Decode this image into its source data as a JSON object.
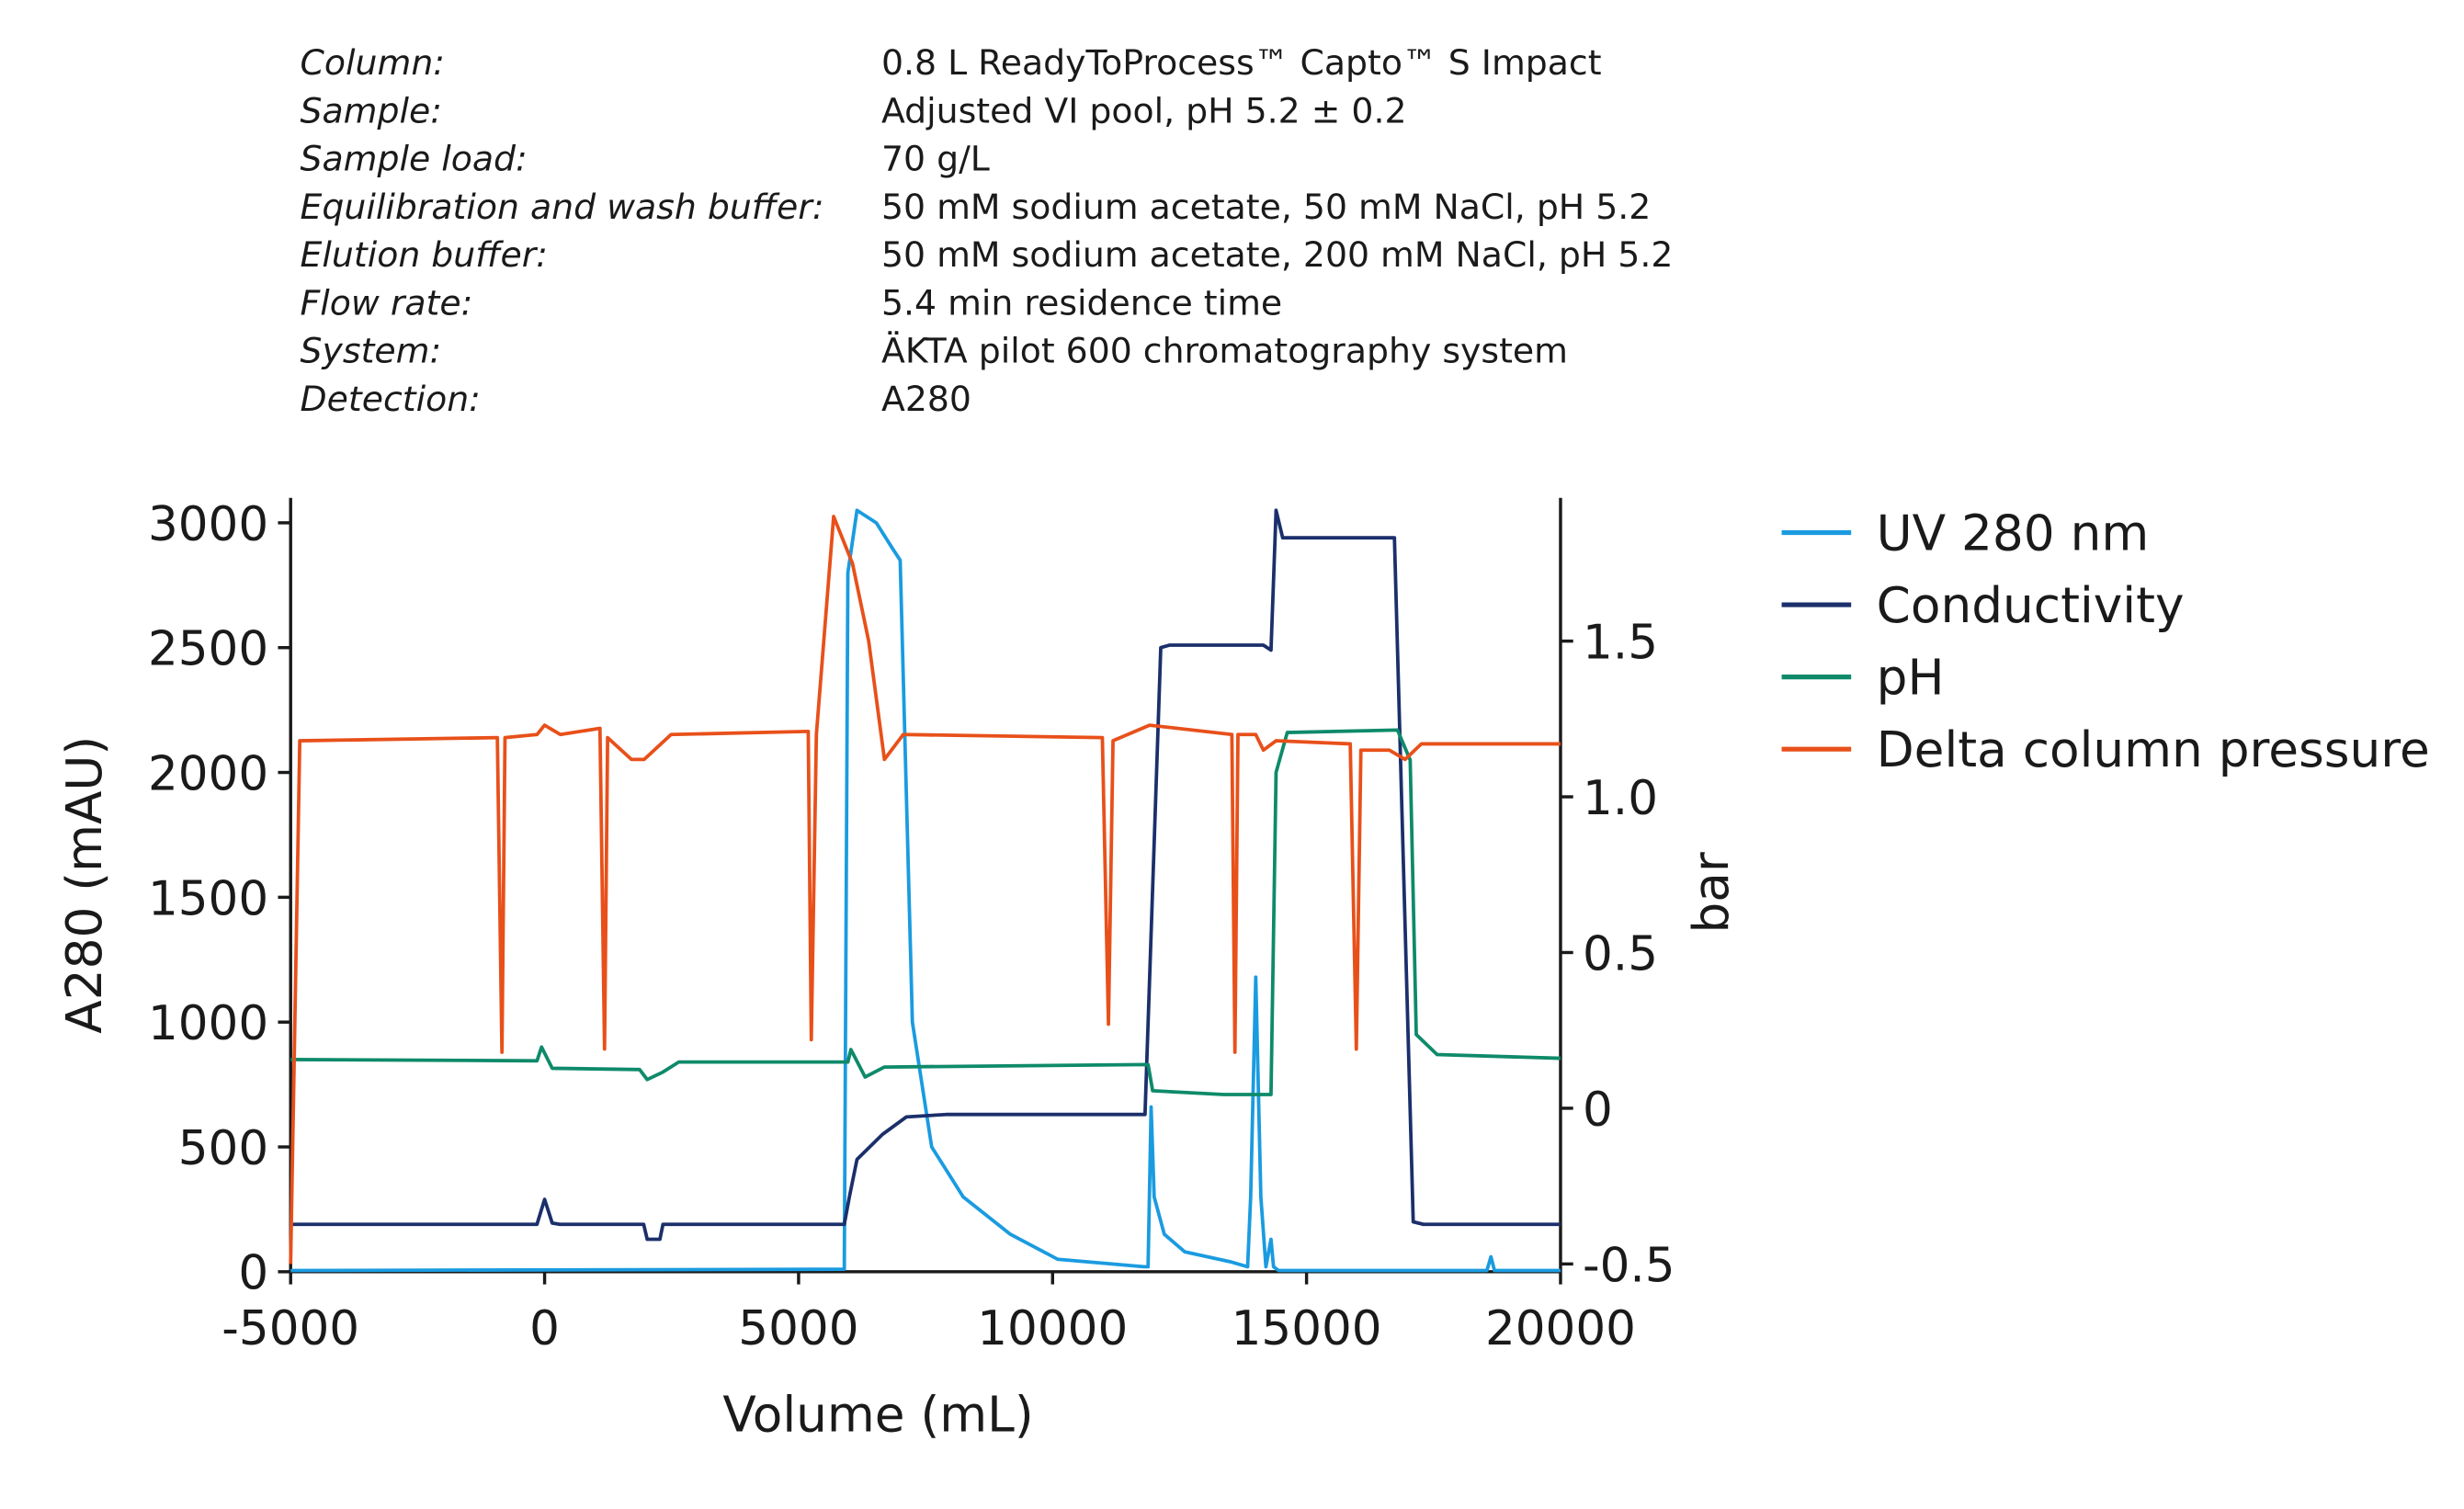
{
  "conditions": [
    {
      "label": "Column:",
      "value": "0.8 L ReadyToProcess™ Capto™ S Impact"
    },
    {
      "label": "Sample:",
      "value": "Adjusted VI pool, pH 5.2 ± 0.2"
    },
    {
      "label": "Sample load:",
      "value": "70 g/L"
    },
    {
      "label": "Equilibration and wash buffer:",
      "value": "50 mM sodium acetate, 50 mM NaCl, pH 5.2"
    },
    {
      "label": "Elution buffer:",
      "value": "50 mM sodium acetate, 200 mM NaCl, pH 5.2"
    },
    {
      "label": "Flow rate:",
      "value": "5.4 min residence time"
    },
    {
      "label": "System:",
      "value": "ÄKTA pilot 600 chromatography system"
    },
    {
      "label": "Detection:",
      "value": "A280"
    }
  ],
  "chart_data": {
    "type": "line",
    "x_label": "Volume (mL)",
    "y_label": "A280 (mAU)",
    "y2_label": "bar",
    "xlim": [
      -5000,
      20000
    ],
    "xticks": [
      -5000,
      0,
      5000,
      10000,
      15000,
      20000
    ],
    "ylim": [
      0,
      3100
    ],
    "yticks": [
      0,
      500,
      1000,
      1500,
      2000,
      2500,
      3000
    ],
    "y2lim": [
      -0.525,
      1.96
    ],
    "y2ticks": [
      -0.5,
      {
        "value": 0,
        "label": "0"
      },
      0.5,
      {
        "value": 1.0,
        "label": "1.0"
      },
      1.5
    ],
    "legend": "right",
    "series": [
      {
        "name": "UV 280 nm",
        "color": "#1a9be0",
        "x": [
          -5000,
          5900,
          5970,
          6150,
          6530,
          6840,
          7000,
          7240,
          7620,
          8240,
          9170,
          10100,
          11800,
          11880,
          11940,
          12000,
          12200,
          12600,
          13500,
          13840,
          13900,
          14000,
          14100,
          14200,
          14300,
          14350,
          14450,
          18550,
          18630,
          18700,
          20000
        ],
        "values": [
          5,
          10,
          2800,
          3050,
          3000,
          2900,
          2850,
          1000,
          500,
          300,
          150,
          50,
          20,
          20,
          660,
          300,
          150,
          80,
          40,
          20,
          300,
          1180,
          300,
          20,
          130,
          20,
          5,
          5,
          60,
          5,
          5
        ]
      },
      {
        "name": "Conductivity",
        "color": "#1b2f6b",
        "x": [
          -5000,
          -150,
          0,
          150,
          300,
          1950,
          2020,
          2270,
          2330,
          5900,
          6000,
          6150,
          6650,
          7120,
          7900,
          11820,
          12130,
          12300,
          14150,
          14300,
          14400,
          14530,
          16730,
          17100,
          17300,
          20000
        ],
        "values": [
          190,
          190,
          290,
          195,
          190,
          190,
          130,
          130,
          190,
          190,
          300,
          450,
          550,
          620,
          630,
          630,
          2500,
          2510,
          2510,
          2490,
          3050,
          2940,
          2940,
          200,
          190,
          190
        ]
      },
      {
        "name": "pH",
        "color": "#0e8a6a",
        "x": [
          -5000,
          -150,
          -60,
          150,
          1870,
          2020,
          2330,
          2640,
          5970,
          6030,
          6310,
          6690,
          11880,
          11970,
          13370,
          14300,
          14400,
          14620,
          16790,
          17040,
          17160,
          17570,
          20000
        ],
        "values": [
          850,
          845,
          900,
          815,
          810,
          770,
          800,
          840,
          840,
          890,
          780,
          820,
          830,
          725,
          710,
          710,
          2000,
          2160,
          2170,
          2050,
          950,
          870,
          855
        ]
      },
      {
        "name": "Delta column  pressure",
        "color": "#e8501a",
        "axis": "y2",
        "x": [
          -5000,
          -4820,
          -930,
          -840,
          -780,
          -150,
          0,
          310,
          1090,
          1180,
          1240,
          1710,
          1960,
          2490,
          5190,
          5250,
          5350,
          5690,
          6060,
          6380,
          6690,
          7060,
          10980,
          11100,
          11190,
          11910,
          13530,
          13590,
          13650,
          14000,
          14150,
          14400,
          15860,
          15980,
          16070,
          16630,
          16940,
          17260,
          20000
        ],
        "values": [
          -0.5,
          1.18,
          1.19,
          0.18,
          1.19,
          1.2,
          1.23,
          1.2,
          1.22,
          0.19,
          1.19,
          1.12,
          1.12,
          1.2,
          1.21,
          0.22,
          1.2,
          1.9,
          1.75,
          1.5,
          1.12,
          1.2,
          1.19,
          0.27,
          1.18,
          1.23,
          1.2,
          0.18,
          1.2,
          1.2,
          1.15,
          1.18,
          1.17,
          0.19,
          1.15,
          1.15,
          1.12,
          1.17,
          1.17
        ]
      }
    ]
  }
}
